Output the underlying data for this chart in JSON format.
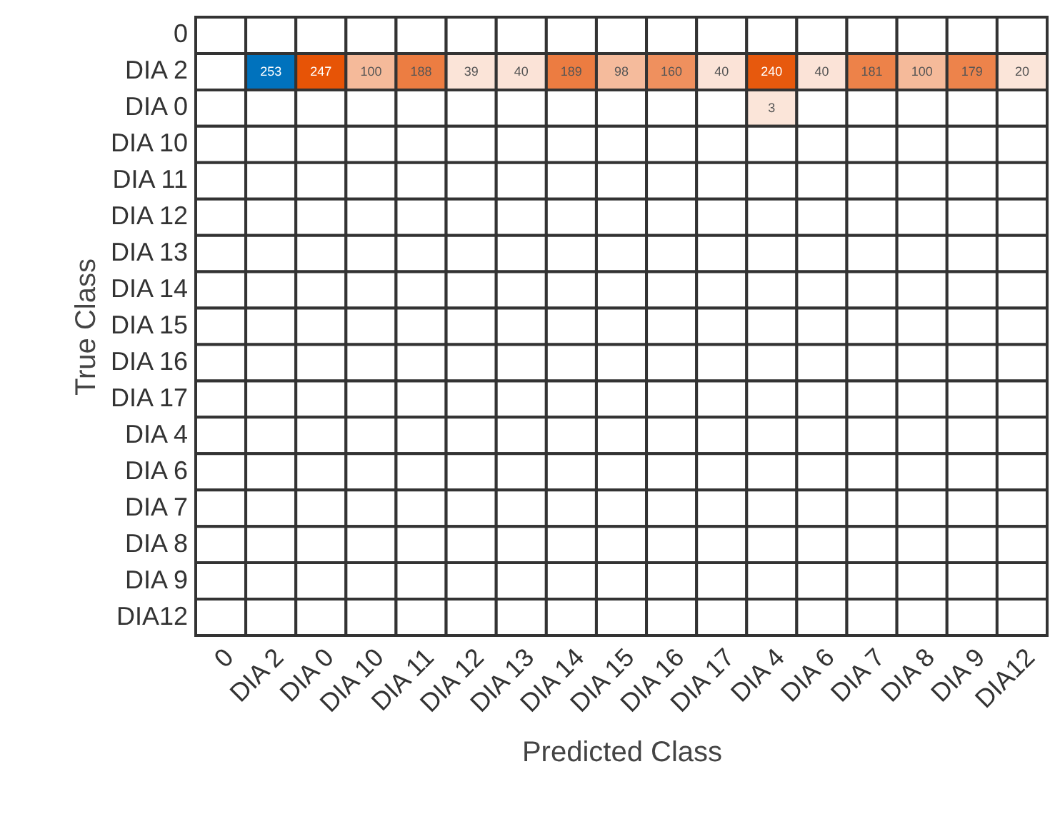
{
  "chart_data": {
    "type": "heatmap",
    "xlabel": "Predicted Class",
    "ylabel": "True Class",
    "categories": [
      "0",
      "DIA 2",
      "DIA 0",
      "DIA 10",
      "DIA 11",
      "DIA 12",
      "DIA 13",
      "DIA 14",
      "DIA 15",
      "DIA 16",
      "DIA 17",
      "DIA 4",
      "DIA 6",
      "DIA 7",
      "DIA 8",
      "DIA 9",
      "DIA12"
    ],
    "y_categories": [
      "0",
      "DIA 2",
      "DIA 0",
      "DIA 10",
      "DIA 11",
      "DIA 12",
      "DIA 13",
      "DIA 14",
      "DIA 15",
      "DIA 16",
      "DIA 17",
      "DIA 4",
      "DIA 6",
      "DIA 7",
      "DIA 8",
      "DIA 9",
      "DIA12"
    ],
    "cells": [
      [
        null,
        null,
        null,
        null,
        null,
        null,
        null,
        null,
        null,
        null,
        null,
        null,
        null,
        null,
        null,
        null,
        null
      ],
      [
        null,
        253,
        247,
        100,
        188,
        39,
        40,
        189,
        98,
        160,
        40,
        240,
        40,
        181,
        100,
        179,
        20
      ],
      [
        null,
        null,
        null,
        null,
        null,
        null,
        null,
        null,
        null,
        null,
        null,
        3,
        null,
        null,
        null,
        null,
        null
      ],
      [
        null,
        null,
        null,
        null,
        null,
        null,
        null,
        null,
        null,
        null,
        null,
        null,
        null,
        null,
        null,
        null,
        null
      ],
      [
        null,
        null,
        null,
        null,
        null,
        null,
        null,
        null,
        null,
        null,
        null,
        null,
        null,
        null,
        null,
        null,
        null
      ],
      [
        null,
        null,
        null,
        null,
        null,
        null,
        null,
        null,
        null,
        null,
        null,
        null,
        null,
        null,
        null,
        null,
        null
      ],
      [
        null,
        null,
        null,
        null,
        null,
        null,
        null,
        null,
        null,
        null,
        null,
        null,
        null,
        null,
        null,
        null,
        null
      ],
      [
        null,
        null,
        null,
        null,
        null,
        null,
        null,
        null,
        null,
        null,
        null,
        null,
        null,
        null,
        null,
        null,
        null
      ],
      [
        null,
        null,
        null,
        null,
        null,
        null,
        null,
        null,
        null,
        null,
        null,
        null,
        null,
        null,
        null,
        null,
        null
      ],
      [
        null,
        null,
        null,
        null,
        null,
        null,
        null,
        null,
        null,
        null,
        null,
        null,
        null,
        null,
        null,
        null,
        null
      ],
      [
        null,
        null,
        null,
        null,
        null,
        null,
        null,
        null,
        null,
        null,
        null,
        null,
        null,
        null,
        null,
        null,
        null
      ],
      [
        null,
        null,
        null,
        null,
        null,
        null,
        null,
        null,
        null,
        null,
        null,
        null,
        null,
        null,
        null,
        null,
        null
      ],
      [
        null,
        null,
        null,
        null,
        null,
        null,
        null,
        null,
        null,
        null,
        null,
        null,
        null,
        null,
        null,
        null,
        null
      ],
      [
        null,
        null,
        null,
        null,
        null,
        null,
        null,
        null,
        null,
        null,
        null,
        null,
        null,
        null,
        null,
        null,
        null
      ],
      [
        null,
        null,
        null,
        null,
        null,
        null,
        null,
        null,
        null,
        null,
        null,
        null,
        null,
        null,
        null,
        null,
        null
      ],
      [
        null,
        null,
        null,
        null,
        null,
        null,
        null,
        null,
        null,
        null,
        null,
        null,
        null,
        null,
        null,
        null,
        null
      ],
      [
        null,
        null,
        null,
        null,
        null,
        null,
        null,
        null,
        null,
        null,
        null,
        null,
        null,
        null,
        null,
        null,
        null
      ]
    ],
    "data_labels": true
  }
}
